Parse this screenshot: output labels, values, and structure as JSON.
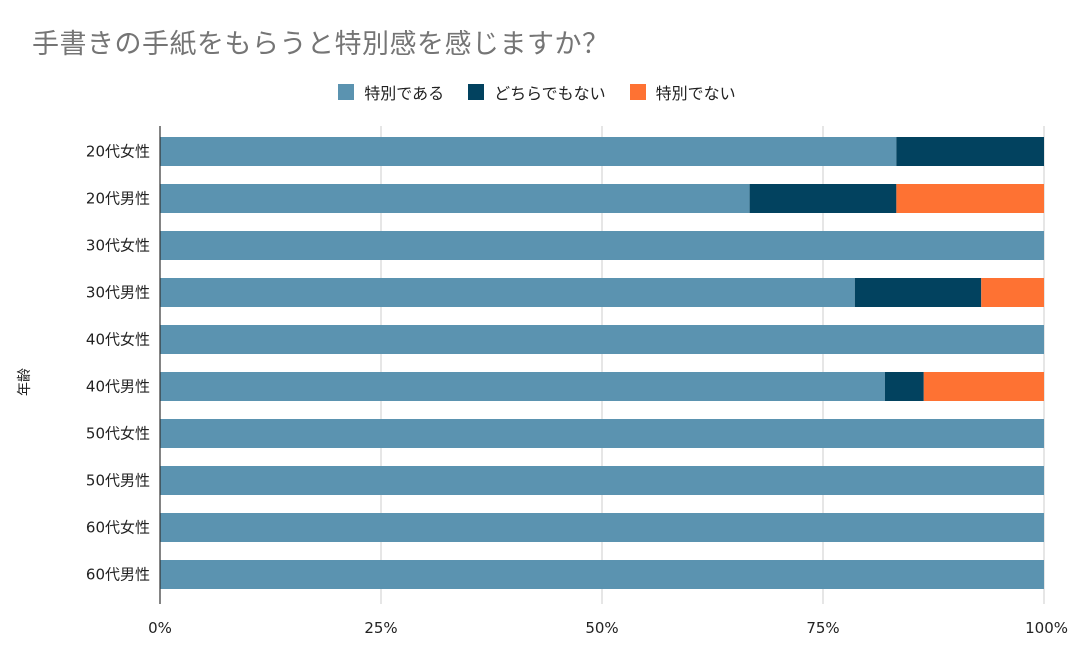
{
  "chart_data": {
    "type": "bar",
    "orientation": "horizontal",
    "stacked": "percent",
    "title": "手書きの手紙をもらうと特別感を感じますか？",
    "ylabel": "年齢",
    "xlabel": "",
    "categories": [
      "20代女性",
      "20代男性",
      "30代女性",
      "30代男性",
      "40代女性",
      "40代男性",
      "50代女性",
      "50代男性",
      "60代女性",
      "60代男性"
    ],
    "series": [
      {
        "name": "特別である",
        "color": "#5b93b0",
        "values": [
          83.3,
          66.7,
          100,
          78.6,
          100,
          82.0,
          100,
          100,
          100,
          100
        ]
      },
      {
        "name": "どちらでもない",
        "color": "#02425f",
        "values": [
          16.7,
          16.6,
          0,
          14.3,
          0,
          4.4,
          0,
          0,
          0,
          0
        ]
      },
      {
        "name": "特別でない",
        "color": "#fe7233",
        "values": [
          0,
          16.7,
          0,
          7.1,
          0,
          13.6,
          0,
          0,
          0,
          0
        ]
      }
    ],
    "xticks": [
      "0%",
      "25%",
      "50%",
      "75%",
      "100%"
    ],
    "xlim": [
      0,
      100
    ],
    "grid": true,
    "legend_position": "top"
  }
}
